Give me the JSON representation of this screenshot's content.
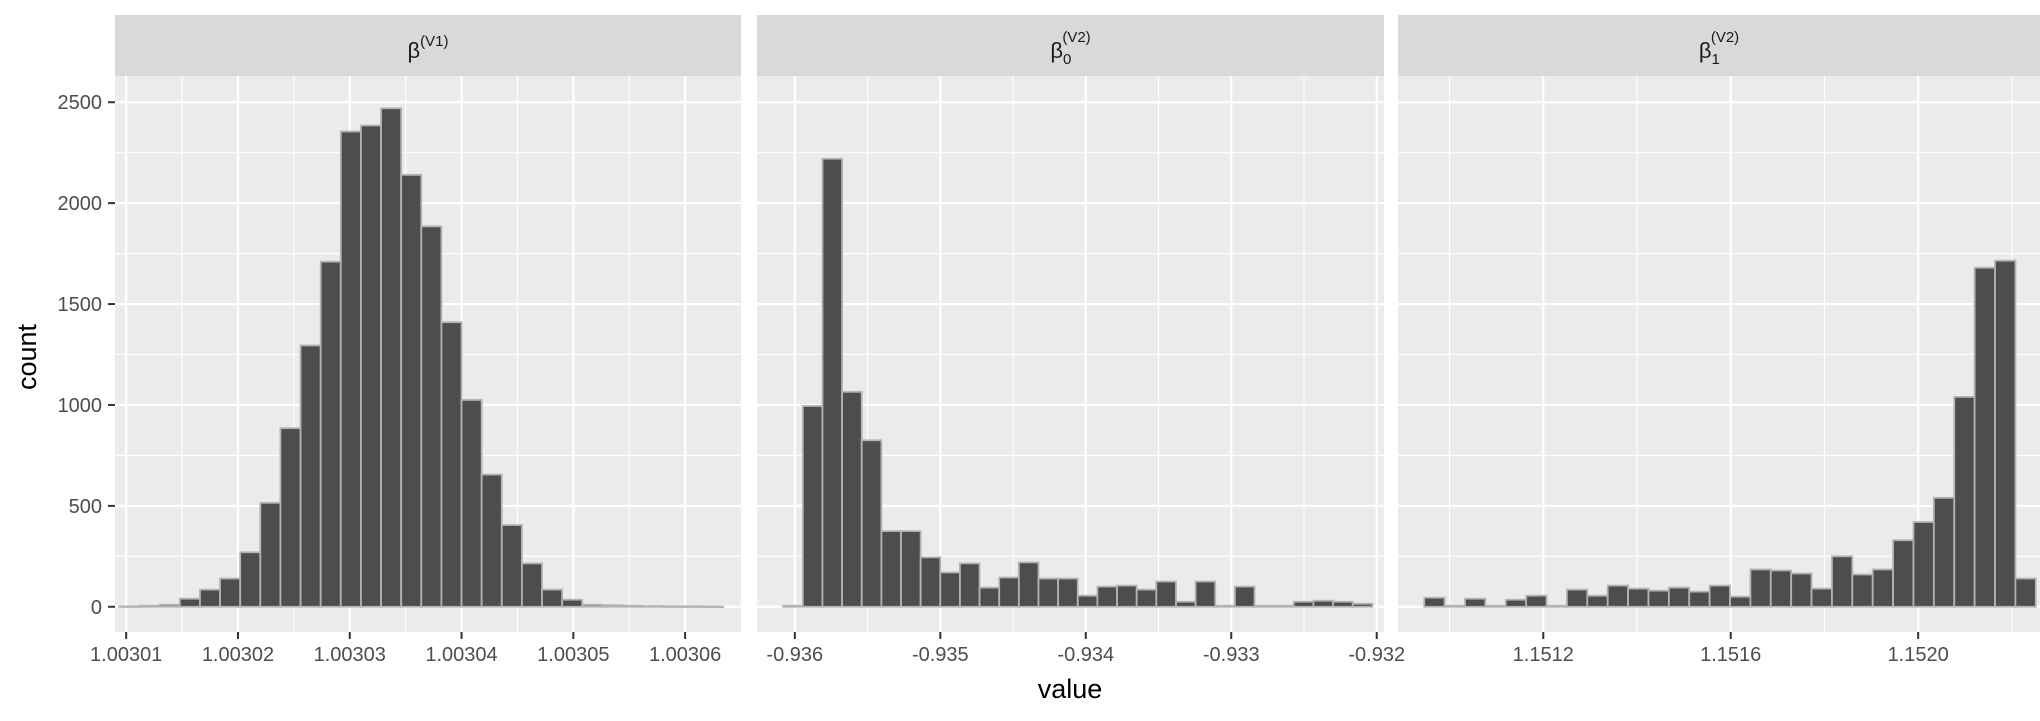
{
  "figure": {
    "xlabel": "value",
    "ylabel": "count"
  },
  "chart_data": [
    {
      "type": "bar",
      "strip_label": {
        "base": "β",
        "sub": "",
        "sup": "(V1)"
      },
      "xlim": [
        1.003009,
        1.003065
      ],
      "ylim": [
        -125,
        2630
      ],
      "x_ticks": [
        1.00301,
        1.00302,
        1.00303,
        1.00304,
        1.00305,
        1.00306
      ],
      "x_tick_labels": [
        "1.00301",
        "1.00302",
        "1.00303",
        "1.00304",
        "1.00305",
        "1.00306"
      ],
      "y_ticks": [
        0,
        500,
        1000,
        1500,
        2000,
        2500
      ],
      "y_tick_labels": [
        "0",
        "500",
        "1000",
        "1500",
        "2000",
        "2500"
      ],
      "bins": {
        "start": 1.0030094,
        "width": 1.8e-06,
        "values": [
          2,
          5,
          10,
          40,
          85,
          140,
          270,
          515,
          885,
          1295,
          1710,
          2355,
          2385,
          2470,
          2140,
          1885,
          1410,
          1025,
          655,
          405,
          215,
          85,
          35,
          10,
          8,
          5,
          3,
          2,
          2,
          1
        ]
      }
    },
    {
      "type": "bar",
      "strip_label": {
        "base": "β",
        "sub": "0",
        "sup": "(V2)"
      },
      "xlim": [
        -0.93626,
        -0.93195
      ],
      "ylim": [
        -125,
        2630
      ],
      "x_ticks": [
        -0.936,
        -0.935,
        -0.934,
        -0.933,
        -0.932
      ],
      "x_tick_labels": [
        "-0.936",
        "-0.935",
        "-0.934",
        "-0.933",
        "-0.932"
      ],
      "y_ticks": [
        0,
        500,
        1000,
        1500,
        2000,
        2500
      ],
      "bins": {
        "start": -0.93608,
        "width": 0.000135,
        "values": [
          5,
          995,
          2220,
          1065,
          825,
          375,
          375,
          245,
          170,
          215,
          95,
          145,
          220,
          140,
          140,
          55,
          100,
          105,
          85,
          125,
          25,
          125,
          5,
          100,
          5,
          5,
          25,
          30,
          25,
          15
        ]
      }
    },
    {
      "type": "bar",
      "strip_label": {
        "base": "β",
        "sub": "1",
        "sup": "(V2)"
      },
      "xlim": [
        1.15089,
        1.15226
      ],
      "ylim": [
        -125,
        2630
      ],
      "x_ticks": [
        1.1512,
        1.1516,
        1.152
      ],
      "x_tick_labels": [
        "1.1512",
        "1.1516",
        "1.1520"
      ],
      "y_ticks": [
        0,
        500,
        1000,
        1500,
        2000,
        2500
      ],
      "bins": {
        "start": 1.150946,
        "width": 4.35e-05,
        "values": [
          45,
          5,
          40,
          5,
          35,
          55,
          5,
          85,
          55,
          105,
          90,
          80,
          95,
          75,
          105,
          50,
          185,
          180,
          165,
          90,
          250,
          160,
          185,
          330,
          420,
          540,
          1040,
          1680,
          1715,
          140
        ]
      }
    }
  ]
}
